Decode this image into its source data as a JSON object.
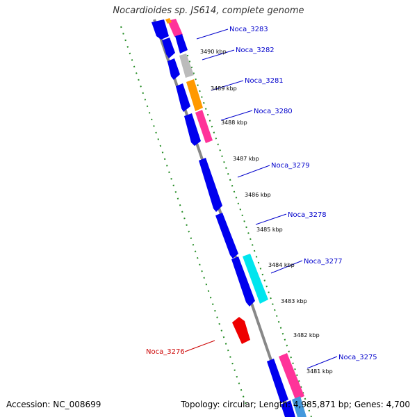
{
  "title": "Nocardioides sp. JS614, complete genome",
  "accession_text": "Accession: NC_008699",
  "summary_text": "Topology: circular; Length: 4,985,871 bp; Genes: 4,700",
  "colors": {
    "backbone": "#888888",
    "tick": "#228b22",
    "gene_blue": "#0000ee",
    "gene_pink": "#ff3399",
    "gene_orange": "#ff9900",
    "gene_gray": "#bbbbbb",
    "gene_cyan": "#00e5ee",
    "gene_red": "#ee0000",
    "label_blue": "#0000cc",
    "label_red": "#cc0000"
  },
  "kbp_ticks": [
    "3481 kbp",
    "3482 kbp",
    "3483 kbp",
    "3484 kbp",
    "3485 kbp",
    "3486 kbp",
    "3487 kbp",
    "3488 kbp",
    "3489 kbp",
    "3490 kbp"
  ],
  "gene_labels": [
    {
      "name": "Noca_3283",
      "color": "blue"
    },
    {
      "name": "Noca_3282",
      "color": "blue"
    },
    {
      "name": "Noca_3281",
      "color": "blue"
    },
    {
      "name": "Noca_3280",
      "color": "blue"
    },
    {
      "name": "Noca_3279",
      "color": "blue"
    },
    {
      "name": "Noca_3278",
      "color": "blue"
    },
    {
      "name": "Noca_3277",
      "color": "blue"
    },
    {
      "name": "Noca_3276",
      "color": "red"
    },
    {
      "name": "Noca_3275",
      "color": "blue"
    }
  ]
}
